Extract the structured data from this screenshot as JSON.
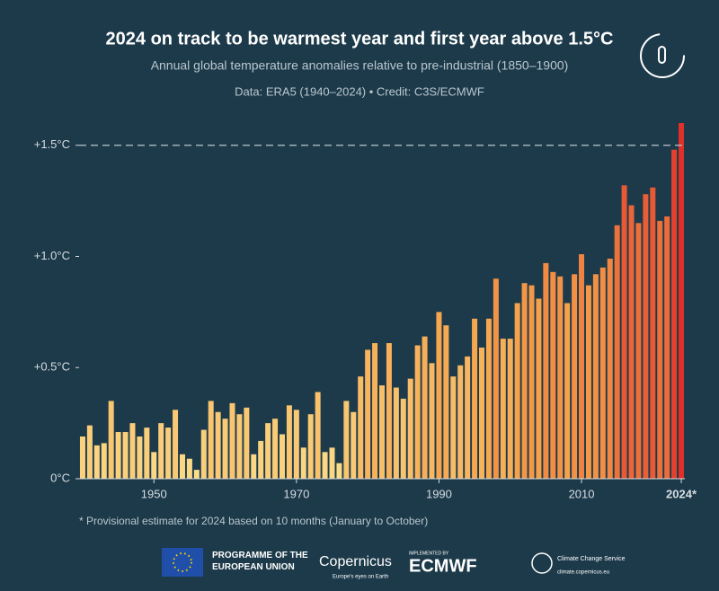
{
  "chart_data": {
    "type": "bar",
    "title": "2024 on track to be warmest year and first year above 1.5°C",
    "subtitle": "Annual global temperature anomalies relative to pre-industrial (1850–1900)",
    "source": "Data: ERA5 (1940–2024) • Credit: C3S/ECMWF",
    "note": "* Provisional estimate for 2024 based on 10 months (January to October)",
    "x": [
      1940,
      1941,
      1942,
      1943,
      1944,
      1945,
      1946,
      1947,
      1948,
      1949,
      1950,
      1951,
      1952,
      1953,
      1954,
      1955,
      1956,
      1957,
      1958,
      1959,
      1960,
      1961,
      1962,
      1963,
      1964,
      1965,
      1966,
      1967,
      1968,
      1969,
      1970,
      1971,
      1972,
      1973,
      1974,
      1975,
      1976,
      1977,
      1978,
      1979,
      1980,
      1981,
      1982,
      1983,
      1984,
      1985,
      1986,
      1987,
      1988,
      1989,
      1990,
      1991,
      1992,
      1993,
      1994,
      1995,
      1996,
      1997,
      1998,
      1999,
      2000,
      2001,
      2002,
      2003,
      2004,
      2005,
      2006,
      2007,
      2008,
      2009,
      2010,
      2011,
      2012,
      2013,
      2014,
      2015,
      2016,
      2017,
      2018,
      2019,
      2020,
      2021,
      2022,
      2023,
      2024
    ],
    "values": [
      0.19,
      0.24,
      0.15,
      0.16,
      0.35,
      0.21,
      0.21,
      0.25,
      0.19,
      0.23,
      0.12,
      0.25,
      0.23,
      0.31,
      0.11,
      0.09,
      0.04,
      0.22,
      0.35,
      0.3,
      0.27,
      0.34,
      0.29,
      0.32,
      0.11,
      0.17,
      0.25,
      0.27,
      0.2,
      0.33,
      0.31,
      0.14,
      0.29,
      0.39,
      0.12,
      0.14,
      0.07,
      0.35,
      0.3,
      0.46,
      0.58,
      0.61,
      0.42,
      0.61,
      0.41,
      0.36,
      0.45,
      0.6,
      0.64,
      0.52,
      0.75,
      0.69,
      0.46,
      0.51,
      0.55,
      0.72,
      0.59,
      0.72,
      0.9,
      0.63,
      0.63,
      0.79,
      0.88,
      0.87,
      0.81,
      0.97,
      0.93,
      0.91,
      0.79,
      0.92,
      1.01,
      0.87,
      0.92,
      0.95,
      0.99,
      1.14,
      1.32,
      1.23,
      1.15,
      1.28,
      1.31,
      1.16,
      1.18,
      1.48,
      1.6
    ],
    "color_scale": [
      "#fbe08e",
      "#f5a24a",
      "#e0302a"
    ],
    "xlim": [
      1939.5,
      2024.5
    ],
    "xticks": [
      1950,
      1970,
      1990,
      2010,
      {
        "value": 2024,
        "label": "2024*"
      }
    ],
    "ylim": [
      0,
      1.6
    ],
    "yticks": [
      {
        "value": 0,
        "label": "0°C"
      },
      {
        "value": 0.5,
        "label": "+0.5°C"
      },
      {
        "value": 1.0,
        "label": "+1.0°C"
      },
      {
        "value": 1.5,
        "label": "+1.5°C"
      }
    ],
    "reference_line": 1.5
  },
  "footer": {
    "eu": "PROGRAMME OF THE EUROPEAN UNION",
    "copernicus": "Copernicus",
    "copernicus_tag": "Europe's eyes on Earth",
    "implemented": "IMPLEMENTED BY",
    "ecmwf": "ECMWF",
    "c3s": "Climate Change Service",
    "c3s_url": "climate.copernicus.eu"
  }
}
